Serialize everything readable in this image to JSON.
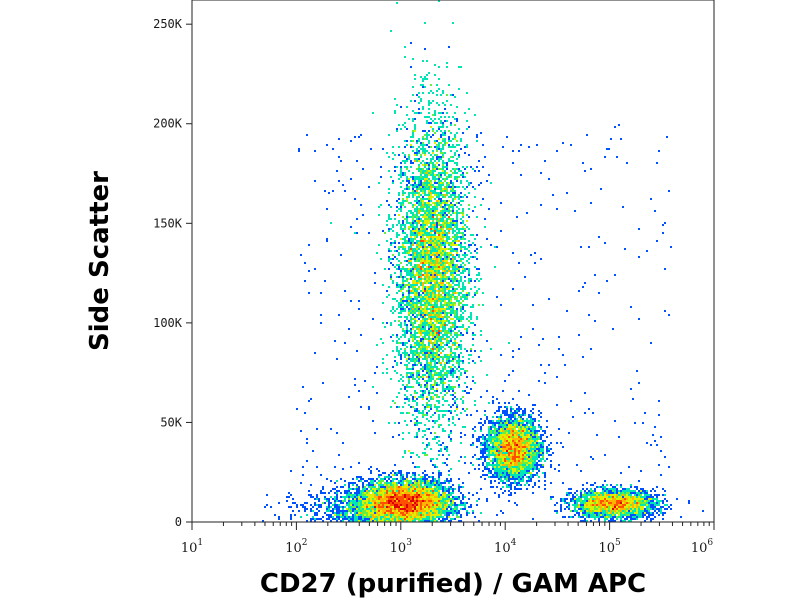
{
  "chart_data": {
    "type": "scatter",
    "plot_style": "flow-cytometry density dot plot (pseudocolor)",
    "xlabel": "CD27 (purified) / GAM APC",
    "ylabel": "Side Scatter",
    "x_scale": "log",
    "xlim": [
      10,
      1000000
    ],
    "ylim": [
      0,
      262144
    ],
    "x_ticks": [
      {
        "value": 10,
        "base": "10",
        "exp": "1"
      },
      {
        "value": 100,
        "base": "10",
        "exp": "2"
      },
      {
        "value": 1000,
        "base": "10",
        "exp": "3"
      },
      {
        "value": 10000,
        "base": "10",
        "exp": "4"
      },
      {
        "value": 100000,
        "base": "10",
        "exp": "5"
      },
      {
        "value": 1000000,
        "base": "10",
        "exp": "6"
      }
    ],
    "y_ticks": [
      {
        "value": 0,
        "label": "0"
      },
      {
        "value": 50000,
        "label": "50K"
      },
      {
        "value": 100000,
        "label": "100K"
      },
      {
        "value": 150000,
        "label": "150K"
      },
      {
        "value": 200000,
        "label": "200K"
      },
      {
        "value": 250000,
        "label": "250K"
      }
    ],
    "grid": false,
    "legend": "none",
    "color_scale": [
      "#0000c8",
      "#0050ff",
      "#00b4ff",
      "#00e6b4",
      "#64f03c",
      "#dcf000",
      "#ffb400",
      "#ff5000",
      "#dc0000"
    ],
    "populations": [
      {
        "x_center": 2000,
        "y_center": 125000,
        "x_spread_decades": 0.17,
        "y_spread": 38000,
        "relative_density": 1.0
      },
      {
        "x_center": 1100,
        "y_center": 10000,
        "x_spread_decades": 0.22,
        "y_spread": 5500,
        "relative_density": 0.55
      },
      {
        "x_center": 12000,
        "y_center": 37000,
        "x_spread_decades": 0.13,
        "y_spread": 8000,
        "relative_density": 0.35
      },
      {
        "x_center": 110000,
        "y_center": 9000,
        "x_spread_decades": 0.2,
        "y_spread": 3500,
        "relative_density": 0.25
      },
      {
        "x_center": 600,
        "y_center": 6000,
        "x_spread_decades": 0.35,
        "y_spread": 6000,
        "relative_density": 0.15
      }
    ]
  }
}
